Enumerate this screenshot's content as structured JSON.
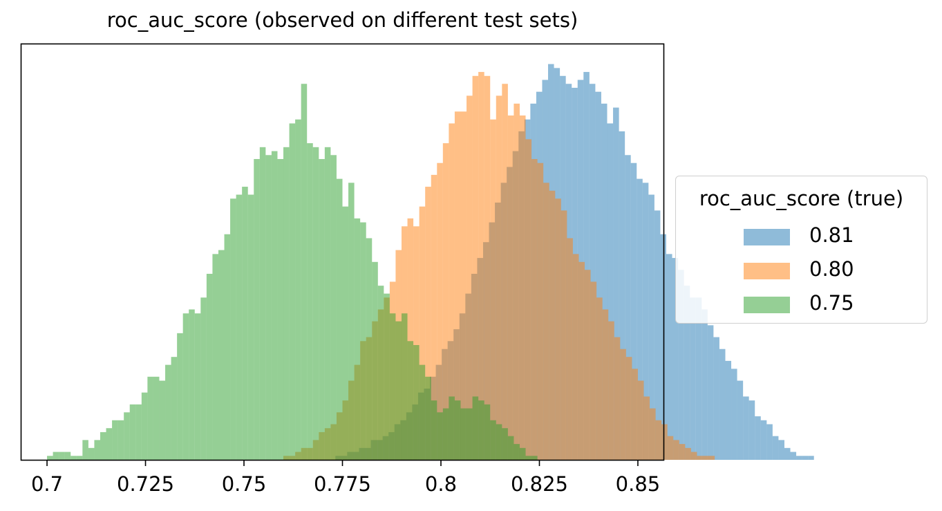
{
  "chart_data": {
    "type": "histogram",
    "title": "roc_auc_score (observed on different test sets)",
    "xlabel": "",
    "ylabel": "",
    "xlim": [
      0.6935,
      0.8565
    ],
    "ylim": [
      0,
      1.05
    ],
    "y_ticks_shown": false,
    "x_ticks": [
      0.7,
      0.725,
      0.75,
      0.775,
      0.8,
      0.825,
      0.85
    ],
    "x_tick_labels": [
      "0.7",
      "0.725",
      "0.75",
      "0.775",
      "0.8",
      "0.825",
      "0.85"
    ],
    "bin_width": 0.0015,
    "legend_title": "roc_auc_score (true)",
    "legend_position": "center-left outside (right of axes)",
    "series": [
      {
        "name": "0.81",
        "color": "#1f77b4",
        "alpha": 0.5,
        "x_start": 0.7732,
        "values": [
          0.01,
          0.01,
          0.02,
          0.02,
          0.03,
          0.03,
          0.05,
          0.05,
          0.06,
          0.07,
          0.09,
          0.1,
          0.12,
          0.14,
          0.17,
          0.18,
          0.21,
          0.24,
          0.28,
          0.3,
          0.33,
          0.37,
          0.42,
          0.47,
          0.51,
          0.55,
          0.6,
          0.65,
          0.7,
          0.74,
          0.78,
          0.83,
          0.86,
          0.9,
          0.93,
          0.96,
          1.0,
          0.99,
          0.97,
          0.95,
          0.94,
          0.96,
          0.98,
          0.95,
          0.93,
          0.9,
          0.85,
          0.89,
          0.83,
          0.77,
          0.75,
          0.71,
          0.7,
          0.67,
          0.63,
          0.57,
          0.52,
          0.51,
          0.48,
          0.44,
          0.41,
          0.41,
          0.38,
          0.34,
          0.31,
          0.28,
          0.25,
          0.23,
          0.2,
          0.16,
          0.15,
          0.11,
          0.1,
          0.09,
          0.06,
          0.05,
          0.03,
          0.02,
          0.01,
          0.01,
          0.01
        ]
      },
      {
        "name": "0.80",
        "color": "#ff7f0e",
        "alpha": 0.5,
        "x_start": 0.76,
        "values": [
          0.01,
          0.01,
          0.02,
          0.03,
          0.03,
          0.05,
          0.07,
          0.08,
          0.09,
          0.12,
          0.15,
          0.2,
          0.24,
          0.3,
          0.31,
          0.35,
          0.38,
          0.41,
          0.45,
          0.53,
          0.59,
          0.61,
          0.59,
          0.64,
          0.69,
          0.72,
          0.75,
          0.8,
          0.85,
          0.88,
          0.88,
          0.92,
          0.97,
          0.98,
          0.97,
          0.86,
          0.92,
          0.95,
          0.87,
          0.9,
          0.87,
          0.81,
          0.76,
          0.75,
          0.7,
          0.68,
          0.66,
          0.63,
          0.56,
          0.52,
          0.5,
          0.48,
          0.45,
          0.41,
          0.38,
          0.35,
          0.31,
          0.28,
          0.26,
          0.23,
          0.2,
          0.16,
          0.13,
          0.1,
          0.09,
          0.06,
          0.05,
          0.04,
          0.03,
          0.02,
          0.01,
          0.01,
          0.01
        ]
      },
      {
        "name": "0.75",
        "color": "#2ca02c",
        "alpha": 0.5,
        "x_start": 0.7,
        "values": [
          0.01,
          0.02,
          0.02,
          0.02,
          0.01,
          0.01,
          0.05,
          0.03,
          0.05,
          0.07,
          0.08,
          0.1,
          0.1,
          0.12,
          0.14,
          0.14,
          0.17,
          0.21,
          0.21,
          0.2,
          0.24,
          0.26,
          0.32,
          0.37,
          0.38,
          0.37,
          0.41,
          0.47,
          0.52,
          0.53,
          0.57,
          0.66,
          0.67,
          0.69,
          0.67,
          0.76,
          0.79,
          0.77,
          0.78,
          0.76,
          0.79,
          0.85,
          0.86,
          0.95,
          0.8,
          0.79,
          0.76,
          0.79,
          0.77,
          0.71,
          0.64,
          0.7,
          0.61,
          0.6,
          0.56,
          0.5,
          0.44,
          0.42,
          0.37,
          0.35,
          0.37,
          0.3,
          0.29,
          0.24,
          0.21,
          0.15,
          0.12,
          0.13,
          0.16,
          0.15,
          0.13,
          0.13,
          0.16,
          0.15,
          0.14,
          0.1,
          0.09,
          0.08,
          0.06,
          0.04,
          0.03,
          0.01,
          0.01
        ]
      }
    ]
  }
}
